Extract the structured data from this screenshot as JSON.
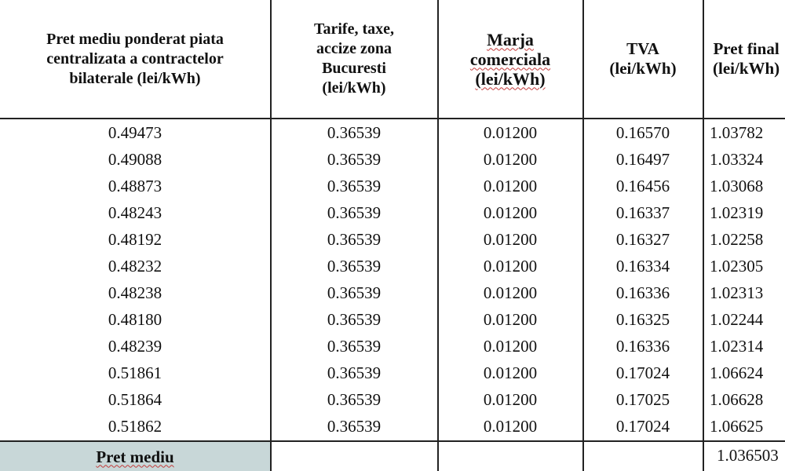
{
  "table": {
    "headers": [
      "Pret mediu ponderat piata\ncentralizata a contractelor\nbilaterale (lei/kWh)",
      "Tarife, taxe,\naccize zona\nBucuresti\n(lei/kWh)",
      "Marja\ncomerciala\n(lei/kWh)",
      "TVA\n(lei/kWh)",
      "Pret final\n(lei/kWh)"
    ],
    "rows": [
      [
        "0.49473",
        "0.36539",
        "0.01200",
        "0.16570",
        "1.03782"
      ],
      [
        "0.49088",
        "0.36539",
        "0.01200",
        "0.16497",
        "1.03324"
      ],
      [
        "0.48873",
        "0.36539",
        "0.01200",
        "0.16456",
        "1.03068"
      ],
      [
        "0.48243",
        "0.36539",
        "0.01200",
        "0.16337",
        "1.02319"
      ],
      [
        "0.48192",
        "0.36539",
        "0.01200",
        "0.16327",
        "1.02258"
      ],
      [
        "0.48232",
        "0.36539",
        "0.01200",
        "0.16334",
        "1.02305"
      ],
      [
        "0.48238",
        "0.36539",
        "0.01200",
        "0.16336",
        "1.02313"
      ],
      [
        "0.48180",
        "0.36539",
        "0.01200",
        "0.16325",
        "1.02244"
      ],
      [
        "0.48239",
        "0.36539",
        "0.01200",
        "0.16336",
        "1.02314"
      ],
      [
        "0.51861",
        "0.36539",
        "0.01200",
        "0.17024",
        "1.06624"
      ],
      [
        "0.51864",
        "0.36539",
        "0.01200",
        "0.17025",
        "1.06628"
      ],
      [
        "0.51862",
        "0.36539",
        "0.01200",
        "0.17024",
        "1.06625"
      ]
    ],
    "footer": {
      "label": "Pret mediu",
      "value": "1.036503"
    },
    "colors": {
      "footer_fill": "#c8d7d8",
      "grid": "#222222",
      "spellcheck_underline": "#c23b3b"
    }
  }
}
